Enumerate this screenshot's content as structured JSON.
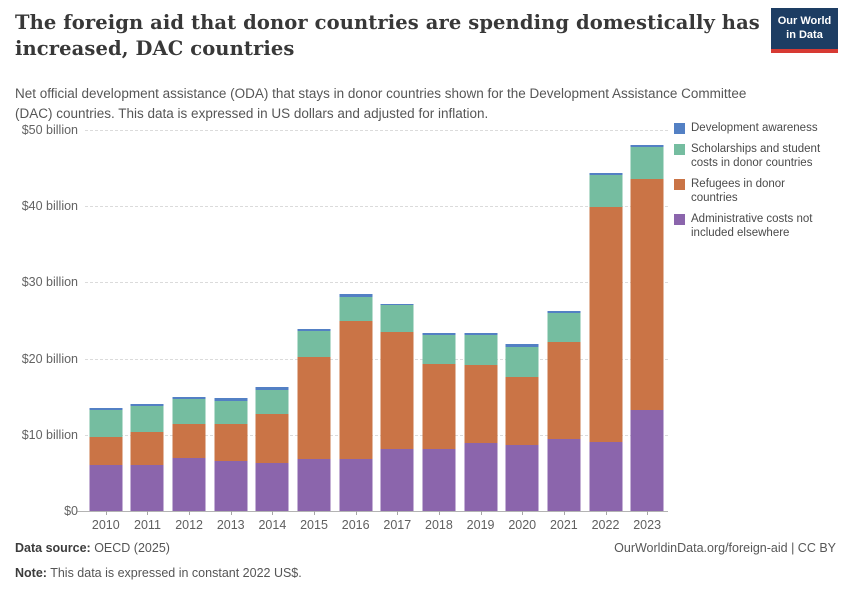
{
  "header": {
    "title": "The foreign aid that donor countries are spending domestically has increased, DAC countries",
    "subtitle": "Net official development assistance (ODA) that stays in donor countries shown for the Development Assistance Committee (DAC) countries. This data is expressed in US dollars and adjusted for inflation.",
    "logo": {
      "line1": "Our World",
      "line2": "in Data",
      "bg_color": "#1d3d63",
      "accent_color": "#d73a33"
    }
  },
  "chart_data": {
    "type": "bar",
    "stacked": true,
    "unit": "US$ billion",
    "categories": [
      "2010",
      "2011",
      "2012",
      "2013",
      "2014",
      "2015",
      "2016",
      "2017",
      "2018",
      "2019",
      "2020",
      "2021",
      "2022",
      "2023"
    ],
    "series": [
      {
        "name": "Administrative costs not included elsewhere",
        "color": "#8b65ac",
        "values": [
          6.0,
          6.1,
          7.0,
          6.6,
          6.3,
          6.8,
          6.8,
          8.1,
          8.1,
          8.9,
          8.7,
          9.4,
          9.0,
          13.2
        ]
      },
      {
        "name": "Refugees in donor countries",
        "color": "#ca7446",
        "values": [
          3.7,
          4.3,
          4.4,
          4.8,
          6.4,
          13.4,
          18.1,
          15.4,
          11.2,
          10.2,
          8.9,
          12.8,
          30.9,
          30.4
        ]
      },
      {
        "name": "Scholarships and student costs in donor countries",
        "color": "#75bda0",
        "values": [
          3.5,
          3.4,
          3.3,
          3.0,
          3.2,
          3.4,
          3.2,
          3.5,
          3.8,
          4.0,
          3.9,
          3.8,
          4.2,
          4.2
        ]
      },
      {
        "name": "Development awareness",
        "color": "#5380c4",
        "values": [
          0.3,
          0.3,
          0.3,
          0.4,
          0.4,
          0.3,
          0.4,
          0.2,
          0.3,
          0.3,
          0.4,
          0.3,
          0.3,
          0.3
        ]
      }
    ],
    "stack_order": "bottom-to-top as listed in series",
    "ylim": [
      0,
      50
    ],
    "y_ticks": [
      {
        "value": 50,
        "label": "$50 billion"
      },
      {
        "value": 40,
        "label": "$40 billion"
      },
      {
        "value": 30,
        "label": "$30 billion"
      },
      {
        "value": 20,
        "label": "$20 billion"
      },
      {
        "value": 10,
        "label": "$10 billion"
      },
      {
        "value": 0,
        "label": "$0"
      }
    ],
    "grid": "horizontal dashed",
    "legend_position": "right"
  },
  "legend": {
    "items": [
      {
        "label": "Development awareness",
        "color": "#5380c4"
      },
      {
        "label": "Scholarships and student costs in donor countries",
        "color": "#75bda0"
      },
      {
        "label": "Refugees in donor countries",
        "color": "#ca7446"
      },
      {
        "label": "Administrative costs not included elsewhere",
        "color": "#8b65ac"
      }
    ]
  },
  "footer": {
    "data_source_label": "Data source:",
    "data_source_value": " OECD (2025)",
    "note_label": "Note:",
    "note_value": " This data is expressed in constant 2022 US$.",
    "credit": "OurWorldinData.org/foreign-aid | CC BY"
  }
}
